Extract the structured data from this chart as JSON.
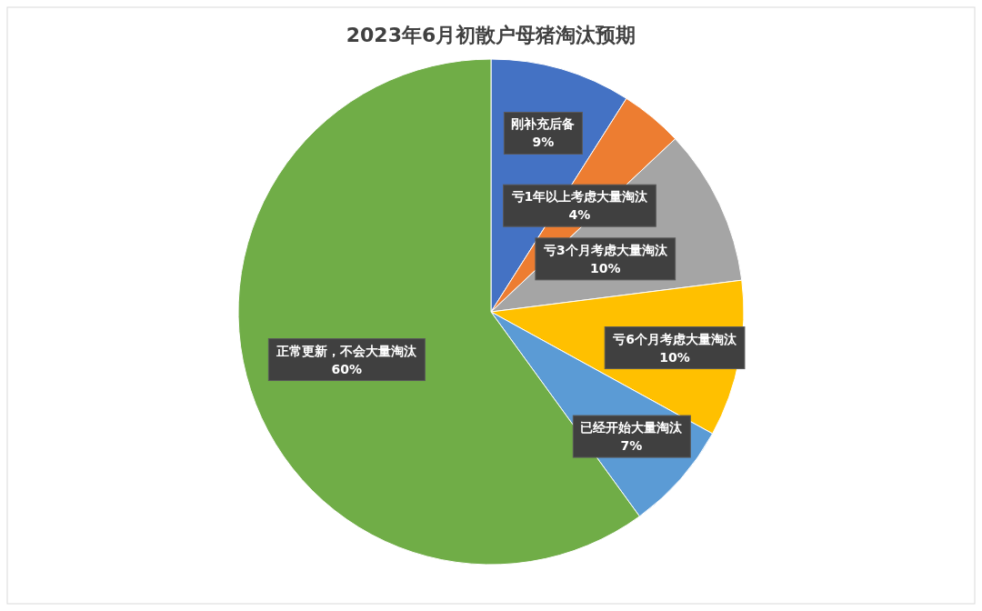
{
  "chart_data": {
    "type": "pie",
    "title": "2023年6月初散户母猪淘汰预期",
    "categories": [
      "刚补充后备",
      "亏1年以上考虑大量淘汰",
      "亏3个月考虑大量淘汰",
      "亏6个月考虑大量淘汰",
      "已经开始大量淘汰",
      "正常更新，不会大量淘汰"
    ],
    "values": [
      9,
      4,
      10,
      10,
      7,
      60
    ],
    "colors": [
      "#4472c4",
      "#ed7d31",
      "#a5a5a5",
      "#ffc000",
      "#5b9bd5",
      "#70ad47"
    ],
    "value_labels": [
      "9%",
      "4%",
      "10%",
      "10%",
      "7%",
      "60%"
    ],
    "legend": false
  }
}
